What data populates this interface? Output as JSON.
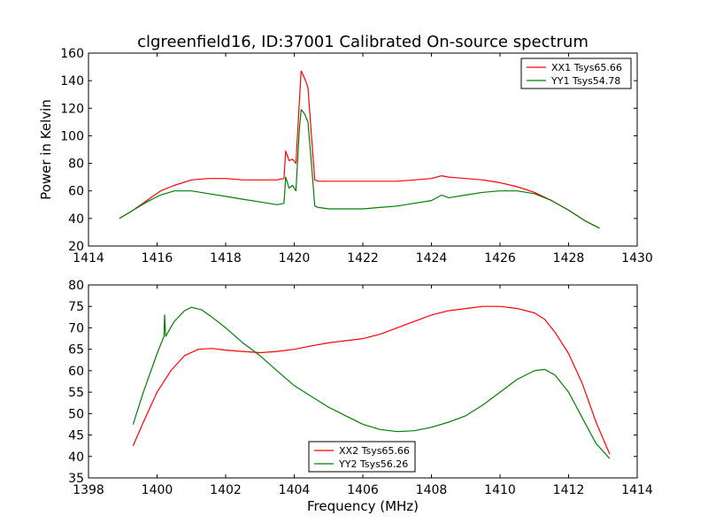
{
  "title": "clgreenfield16, ID:37001 Calibrated On-source spectrum",
  "colors": {
    "red": "#ff0000",
    "green": "#008000"
  },
  "chart_data": [
    {
      "type": "line",
      "ylabel": "Power in Kelvin",
      "xlabel": "",
      "xlim": [
        1414,
        1430
      ],
      "ylim": [
        20,
        160
      ],
      "xticks": [
        1414,
        1416,
        1418,
        1420,
        1422,
        1424,
        1426,
        1428,
        1430
      ],
      "yticks": [
        20,
        40,
        60,
        80,
        100,
        120,
        140,
        160
      ],
      "legend_position": "top-right",
      "series": [
        {
          "name": "XX1 Tsys65.66",
          "color": "#ff0000",
          "x": [
            1414.9,
            1415.3,
            1415.7,
            1416.1,
            1416.5,
            1417.0,
            1417.5,
            1418.0,
            1418.5,
            1419.0,
            1419.5,
            1419.7,
            1419.75,
            1419.85,
            1419.95,
            1420.05,
            1420.15,
            1420.2,
            1420.3,
            1420.4,
            1420.5,
            1420.6,
            1420.7,
            1421.0,
            1421.5,
            1422.0,
            1422.5,
            1423.0,
            1423.5,
            1424.0,
            1424.3,
            1424.5,
            1425.0,
            1425.5,
            1426.0,
            1426.5,
            1427.0,
            1427.5,
            1428.0,
            1428.5,
            1428.9
          ],
          "y": [
            40,
            46,
            53,
            60,
            64,
            68,
            69,
            69,
            68,
            68,
            68,
            69,
            89,
            82,
            83,
            80,
            125,
            147,
            142,
            135,
            100,
            68,
            67,
            67,
            67,
            67,
            67,
            67,
            68,
            69,
            71,
            70,
            69,
            68,
            66,
            63,
            59,
            53,
            46,
            38,
            33
          ]
        },
        {
          "name": "YY1 Tsys54.78",
          "color": "#008000",
          "x": [
            1414.9,
            1415.3,
            1415.7,
            1416.1,
            1416.5,
            1417.0,
            1417.5,
            1418.0,
            1418.5,
            1419.0,
            1419.5,
            1419.7,
            1419.75,
            1419.85,
            1419.95,
            1420.05,
            1420.15,
            1420.2,
            1420.3,
            1420.4,
            1420.5,
            1420.6,
            1420.7,
            1421.0,
            1421.5,
            1422.0,
            1422.5,
            1423.0,
            1423.5,
            1424.0,
            1424.3,
            1424.5,
            1425.0,
            1425.5,
            1426.0,
            1426.5,
            1427.0,
            1427.5,
            1428.0,
            1428.5,
            1428.9
          ],
          "y": [
            40,
            46,
            52,
            57,
            60,
            60,
            58,
            56,
            54,
            52,
            50,
            51,
            70,
            62,
            64,
            60,
            105,
            119,
            116,
            110,
            80,
            49,
            48,
            47,
            47,
            47,
            48,
            49,
            51,
            53,
            57,
            55,
            57,
            59,
            60,
            60,
            58,
            53,
            46,
            38,
            33
          ]
        }
      ]
    },
    {
      "type": "line",
      "ylabel": "",
      "xlabel": "Frequency (MHz)",
      "xlim": [
        1398,
        1414
      ],
      "ylim": [
        35,
        80
      ],
      "xticks": [
        1398,
        1400,
        1402,
        1404,
        1406,
        1408,
        1410,
        1412,
        1414
      ],
      "yticks": [
        35,
        40,
        45,
        50,
        55,
        60,
        65,
        70,
        75,
        80
      ],
      "legend_position": "bottom-center",
      "series": [
        {
          "name": "XX2 Tsys65.66",
          "color": "#ff0000",
          "x": [
            1399.3,
            1399.6,
            1400.0,
            1400.4,
            1400.8,
            1401.2,
            1401.6,
            1402.0,
            1402.5,
            1403.0,
            1403.5,
            1404.0,
            1404.5,
            1405.0,
            1405.5,
            1406.0,
            1406.5,
            1407.0,
            1407.5,
            1408.0,
            1408.5,
            1409.0,
            1409.5,
            1410.0,
            1410.5,
            1411.0,
            1411.3,
            1411.6,
            1412.0,
            1412.4,
            1412.8,
            1413.2
          ],
          "y": [
            42.5,
            48,
            55,
            60,
            63.5,
            65,
            65.2,
            64.8,
            64.5,
            64.2,
            64.5,
            65,
            65.8,
            66.5,
            67,
            67.5,
            68.5,
            70,
            71.5,
            73,
            74,
            74.5,
            75,
            75,
            74.5,
            73.5,
            72,
            69,
            64,
            57,
            48,
            40.5
          ]
        },
        {
          "name": "YY2 Tsys56.26",
          "color": "#008000",
          "x": [
            1399.3,
            1399.6,
            1400.0,
            1400.2,
            1400.22,
            1400.25,
            1400.5,
            1400.8,
            1401.0,
            1401.3,
            1401.6,
            1402.0,
            1402.5,
            1403.0,
            1403.5,
            1404.0,
            1404.5,
            1405.0,
            1405.5,
            1406.0,
            1406.5,
            1407.0,
            1407.5,
            1408.0,
            1408.5,
            1409.0,
            1409.5,
            1410.0,
            1410.5,
            1411.0,
            1411.3,
            1411.6,
            1412.0,
            1412.4,
            1412.8,
            1413.2
          ],
          "y": [
            47.5,
            55,
            64,
            68,
            73,
            68,
            71.5,
            74,
            74.8,
            74.2,
            72.5,
            70,
            66.5,
            63.5,
            60,
            56.5,
            54,
            51.5,
            49.5,
            47.5,
            46.3,
            45.8,
            46,
            46.8,
            48,
            49.5,
            52,
            55,
            58,
            60,
            60.3,
            59,
            55,
            49,
            43,
            39.5
          ]
        }
      ]
    }
  ]
}
